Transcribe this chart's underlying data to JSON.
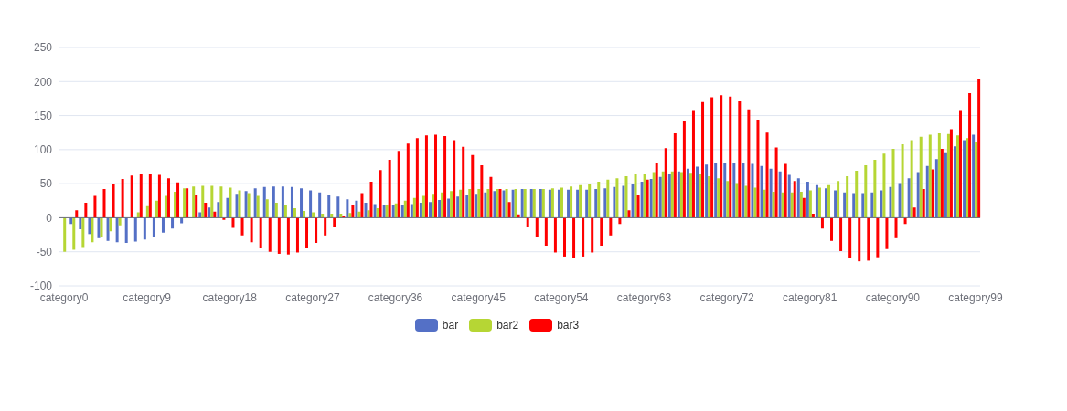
{
  "chart_data": {
    "type": "bar",
    "categories": [
      "category0",
      null,
      null,
      null,
      null,
      null,
      null,
      null,
      null,
      "category9",
      null,
      null,
      null,
      null,
      null,
      null,
      null,
      null,
      "category18",
      null,
      null,
      null,
      null,
      null,
      null,
      null,
      null,
      "category27",
      null,
      null,
      null,
      null,
      null,
      null,
      null,
      null,
      "category36",
      null,
      null,
      null,
      null,
      null,
      null,
      null,
      null,
      "category45",
      null,
      null,
      null,
      null,
      null,
      null,
      null,
      null,
      "category54",
      null,
      null,
      null,
      null,
      null,
      null,
      null,
      null,
      "category63",
      null,
      null,
      null,
      null,
      null,
      null,
      null,
      null,
      "category72",
      null,
      null,
      null,
      null,
      null,
      null,
      null,
      null,
      "category81",
      null,
      null,
      null,
      null,
      null,
      null,
      null,
      null,
      "category90",
      null,
      null,
      null,
      null,
      null,
      null,
      null,
      null,
      "category99"
    ],
    "series": [
      {
        "name": "bar",
        "color": "#5470c6",
        "values": [
          0,
          -9,
          -17,
          -24,
          -30,
          -34,
          -36,
          -37,
          -35,
          -32,
          -28,
          -22,
          -16,
          -8,
          0,
          8,
          15,
          23,
          29,
          35,
          39,
          43,
          45,
          46,
          46,
          45,
          43,
          40,
          37,
          34,
          31,
          27,
          25,
          22,
          20,
          19,
          19,
          19,
          20,
          22,
          23,
          26,
          28,
          31,
          33,
          35,
          37,
          39,
          40,
          41,
          42,
          42,
          42,
          41,
          41,
          41,
          41,
          41,
          42,
          43,
          45,
          47,
          50,
          53,
          57,
          60,
          64,
          68,
          72,
          75,
          78,
          80,
          81,
          81,
          81,
          79,
          76,
          72,
          68,
          63,
          58,
          53,
          48,
          43,
          40,
          37,
          36,
          36,
          37,
          40,
          45,
          51,
          58,
          67,
          76,
          86,
          96,
          105,
          114,
          122
        ]
      },
      {
        "name": "bar2",
        "color": "#b6d634",
        "values": [
          -50,
          -47,
          -43,
          -36,
          -29,
          -20,
          -11,
          null,
          8,
          17,
          25,
          32,
          38,
          43,
          46,
          47,
          47,
          46,
          44,
          40,
          36,
          32,
          27,
          22,
          18,
          14,
          10,
          8,
          6,
          6,
          6,
          7,
          9,
          11,
          14,
          18,
          21,
          25,
          29,
          32,
          35,
          37,
          39,
          41,
          42,
          42,
          42,
          42,
          42,
          42,
          42,
          42,
          42,
          43,
          44,
          46,
          48,
          50,
          53,
          56,
          58,
          61,
          64,
          65,
          67,
          68,
          68,
          67,
          66,
          64,
          61,
          58,
          54,
          51,
          47,
          44,
          41,
          38,
          37,
          37,
          38,
          40,
          44,
          48,
          54,
          61,
          69,
          77,
          85,
          94,
          101,
          108,
          114,
          119,
          122,
          124,
          123,
          121,
          117,
          111
        ]
      },
      {
        "name": "bar3",
        "color": "#ff0000",
        "values": [
          0,
          11,
          22,
          32,
          42,
          50,
          57,
          62,
          65,
          65,
          63,
          58,
          52,
          43,
          33,
          22,
          9,
          -3,
          -15,
          -26,
          -36,
          -44,
          -50,
          -53,
          -54,
          -51,
          -45,
          -37,
          -26,
          -13,
          3,
          19,
          36,
          53,
          70,
          85,
          98,
          109,
          117,
          121,
          122,
          120,
          114,
          104,
          92,
          77,
          60,
          42,
          23,
          5,
          -13,
          -28,
          -41,
          -51,
          -57,
          -59,
          -57,
          -51,
          -41,
          -26,
          -9,
          11,
          33,
          56,
          80,
          102,
          124,
          142,
          158,
          170,
          177,
          180,
          178,
          171,
          159,
          144,
          125,
          103,
          79,
          54,
          29,
          6,
          -16,
          -34,
          -49,
          -59,
          -64,
          -63,
          -58,
          -46,
          -30,
          -9,
          15,
          42,
          71,
          101,
          130,
          158,
          183,
          204
        ]
      }
    ],
    "ylim": [
      -100,
      250
    ],
    "yticks": [
      -100,
      -50,
      0,
      50,
      100,
      150,
      200,
      250
    ],
    "grid": "y",
    "legend": "bottom"
  }
}
